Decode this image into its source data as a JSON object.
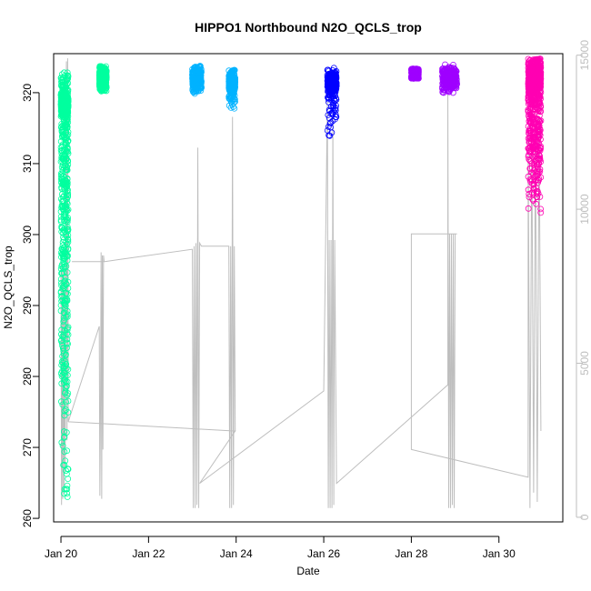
{
  "chart_data": {
    "type": "scatter",
    "title": "HIPPO1 Northbound N2O_QCLS_trop",
    "xlabel": "Date",
    "ylabel": "N2O_QCLS_trop",
    "xlim": [
      "2009-01-19T20:00",
      "2009-01-31T11:00"
    ],
    "ylim": [
      259.5,
      325.5
    ],
    "y2lim": [
      -150,
      15050
    ],
    "x_ticks": [
      {
        "value": "2009-01-20",
        "label": "Jan 20"
      },
      {
        "value": "2009-01-22",
        "label": "Jan 22"
      },
      {
        "value": "2009-01-24",
        "label": "Jan 24"
      },
      {
        "value": "2009-01-26",
        "label": "Jan 26"
      },
      {
        "value": "2009-01-28",
        "label": "Jan 28"
      },
      {
        "value": "2009-01-30",
        "label": "Jan 30"
      }
    ],
    "y_ticks": [
      {
        "value": 260,
        "label": "260"
      },
      {
        "value": 270,
        "label": "270"
      },
      {
        "value": 280,
        "label": "280"
      },
      {
        "value": 290,
        "label": "290"
      },
      {
        "value": 300,
        "label": "300"
      },
      {
        "value": 310,
        "label": "310"
      },
      {
        "value": 320,
        "label": "320"
      }
    ],
    "y2_ticks": [
      {
        "value": 0,
        "label": "0"
      },
      {
        "value": 5000,
        "label": "5000"
      },
      {
        "value": 10000,
        "label": "10000"
      },
      {
        "value": 15000,
        "label": "15000"
      }
    ],
    "grid": false,
    "legend": "none",
    "n2o_flights": [
      {
        "start": "2009-01-20T00:00",
        "end": "2009-01-20T04:00",
        "color": "#00ff9f",
        "ymin": 261,
        "ymax": 323,
        "mean": 318.5,
        "tail": "broad"
      },
      {
        "start": "2009-01-20T21:00",
        "end": "2009-01-21T01:00",
        "color": "#00ff9f",
        "ymin": 320.2,
        "ymax": 323.8,
        "mean": 322.0,
        "tail": "none"
      },
      {
        "start": "2009-01-23T00:00",
        "end": "2009-01-23T05:00",
        "color": "#00b2ff",
        "ymin": 319.5,
        "ymax": 323.8,
        "mean": 322.0,
        "tail": "none"
      },
      {
        "start": "2009-01-23T20:00",
        "end": "2009-01-23T23:30",
        "color": "#00b2ff",
        "ymin": 317.5,
        "ymax": 323.2,
        "mean": 321.5,
        "tail": "light"
      },
      {
        "start": "2009-01-26T02:00",
        "end": "2009-01-26T07:00",
        "color": "#0000ff",
        "ymin": 312.5,
        "ymax": 323.5,
        "mean": 321.5,
        "tail": "light"
      },
      {
        "start": "2009-01-28T00:00",
        "end": "2009-01-28T04:00",
        "color": "#9f00ff",
        "ymin": 322.0,
        "ymax": 323.4,
        "mean": 322.6,
        "tail": "none"
      },
      {
        "start": "2009-01-28T17:00",
        "end": "2009-01-29T01:00",
        "color": "#9f00ff",
        "ymin": 319.8,
        "ymax": 324.0,
        "mean": 322.0,
        "tail": "none"
      },
      {
        "start": "2009-01-30T16:00",
        "end": "2009-01-30T23:00",
        "color": "#ff00b2",
        "ymin": 303.0,
        "ymax": 324.8,
        "mean": 322.0,
        "tail": "broad"
      }
    ],
    "altitude_series": {
      "color": "#bebebe",
      "points": [
        [
          "2009-01-20T00:00",
          8300
        ],
        [
          "2009-01-20T00:20",
          400
        ],
        [
          "2009-01-20T00:40",
          8200
        ],
        [
          "2009-01-20T01:00",
          600
        ],
        [
          "2009-01-20T01:20",
          8100
        ],
        [
          "2009-01-20T01:40",
          800
        ],
        [
          "2009-01-20T02:00",
          8100
        ],
        [
          "2009-01-20T02:20",
          1500
        ],
        [
          "2009-01-20T02:40",
          8100
        ],
        [
          "2009-01-20T03:00",
          14800
        ],
        [
          "2009-01-20T03:20",
          2500
        ],
        [
          "2009-01-20T03:40",
          14900
        ],
        [
          "2009-01-20T04:00",
          3100
        ],
        [
          "2009-01-20T21:00",
          6200
        ],
        [
          "2009-01-20T21:20",
          700
        ],
        [
          "2009-01-20T21:40",
          3500
        ],
        [
          "2009-01-20T22:00",
          8600
        ],
        [
          "2009-01-20T22:20",
          600
        ],
        [
          "2009-01-20T22:40",
          8500
        ],
        [
          "2009-01-20T23:00",
          2200
        ],
        [
          "2009-01-20T23:20",
          8500
        ],
        [
          "2009-01-20T23:40",
          8300
        ],
        [
          "2009-01-20T06:00",
          8300
        ],
        [
          "2009-01-20T18:00",
          8300
        ],
        [
          "2009-01-21T00:00",
          8300
        ],
        [
          "2009-01-23T00:00",
          8700
        ],
        [
          "2009-01-23T00:30",
          300
        ],
        [
          "2009-01-23T01:00",
          8800
        ],
        [
          "2009-01-23T01:30",
          300
        ],
        [
          "2009-01-23T02:00",
          8900
        ],
        [
          "2009-01-23T02:30",
          400
        ],
        [
          "2009-01-23T03:00",
          12000
        ],
        [
          "2009-01-23T03:30",
          300
        ],
        [
          "2009-01-23T04:00",
          8900
        ],
        [
          "2009-01-23T05:00",
          8800
        ],
        [
          "2009-01-23T06:00",
          8800
        ],
        [
          "2009-01-23T20:00",
          8800
        ],
        [
          "2009-01-23T20:30",
          300
        ],
        [
          "2009-01-23T21:00",
          8800
        ],
        [
          "2009-01-23T21:30",
          300
        ],
        [
          "2009-01-23T22:00",
          13000
        ],
        [
          "2009-01-23T22:30",
          400
        ],
        [
          "2009-01-23T23:00",
          8800
        ],
        [
          "2009-01-23T23:30",
          2800
        ],
        [
          "2009-01-20T04:00",
          3100
        ],
        [
          "2009-01-23T23:30",
          2800
        ],
        [
          "2009-01-23T04:00",
          1100
        ],
        [
          "2009-01-26T00:00",
          4100
        ],
        [
          "2009-01-26T02:00",
          13500
        ],
        [
          "2009-01-26T02:30",
          300
        ],
        [
          "2009-01-26T03:00",
          9000
        ],
        [
          "2009-01-26T03:30",
          300
        ],
        [
          "2009-01-26T04:00",
          9000
        ],
        [
          "2009-01-26T04:30",
          300
        ],
        [
          "2009-01-26T05:00",
          13000
        ],
        [
          "2009-01-26T05:30",
          400
        ],
        [
          "2009-01-26T06:00",
          9000
        ],
        [
          "2009-01-26T07:00",
          1100
        ],
        [
          "2009-01-26T07:00",
          1100
        ],
        [
          "2009-01-28T20:00",
          4300
        ],
        [
          "2009-01-28T20:00",
          13800
        ],
        [
          "2009-01-28T20:30",
          300
        ],
        [
          "2009-01-28T21:00",
          9200
        ],
        [
          "2009-01-28T21:30",
          300
        ],
        [
          "2009-01-28T22:00",
          9200
        ],
        [
          "2009-01-28T22:30",
          400
        ],
        [
          "2009-01-28T23:00",
          9200
        ],
        [
          "2009-01-28T23:30",
          300
        ],
        [
          "2009-01-29T00:00",
          9200
        ],
        [
          "2009-01-29T01:00",
          9200
        ],
        [
          "2009-01-28T00:00",
          9200
        ],
        [
          "2009-01-28T00:00",
          2200
        ],
        [
          "2009-01-30T16:00",
          1300
        ],
        [
          "2009-01-30T16:00",
          12700
        ],
        [
          "2009-01-30T17:00",
          300
        ],
        [
          "2009-01-30T18:00",
          12500
        ],
        [
          "2009-01-30T19:00",
          800
        ],
        [
          "2009-01-30T20:00",
          12500
        ],
        [
          "2009-01-30T21:00",
          500
        ],
        [
          "2009-01-30T22:00",
          13000
        ],
        [
          "2009-01-30T23:00",
          2800
        ]
      ]
    }
  }
}
